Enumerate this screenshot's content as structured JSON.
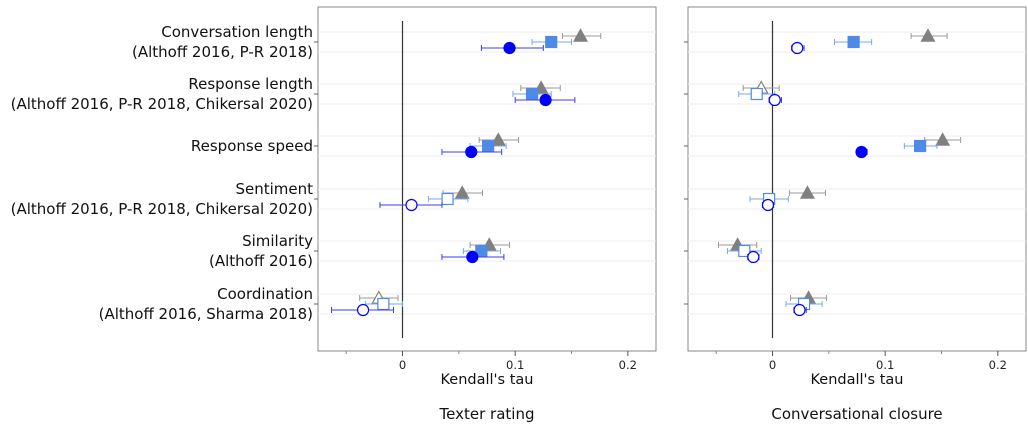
{
  "chart_data": {
    "type": "dot-whisker",
    "categories": [
      {
        "label_lines": [
          "Conversation length",
          "(Althoff 2016, P-R 2018)"
        ]
      },
      {
        "label_lines": [
          "Response length",
          "(Althoff 2016, P-R 2018, Chikersal 2020)"
        ]
      },
      {
        "label_lines": [
          "Response speed"
        ]
      },
      {
        "label_lines": [
          "Sentiment",
          "(Althoff 2016, P-R 2018, Chikersal 2020)"
        ]
      },
      {
        "label_lines": [
          "Similarity",
          "(Althoff 2016)"
        ]
      },
      {
        "label_lines": [
          "Coordination",
          "(Althoff 2016, Sharma 2018)"
        ]
      }
    ],
    "x_axis": {
      "label": "Kendall's tau",
      "ticks": [
        0,
        0.1,
        0.2
      ],
      "tick_labels": [
        "0",
        "0.1",
        "0.2"
      ],
      "range": [
        -0.075,
        0.225
      ]
    },
    "markers": {
      "triangle": {
        "color": "#808080"
      },
      "square": {
        "color": "#4f8ae6"
      },
      "circle": {
        "color": "#0000ff"
      }
    },
    "panels": [
      {
        "title": "Texter rating",
        "points": [
          {
            "cat": 0,
            "marker": "triangle",
            "value": 0.158,
            "lo": 0.142,
            "hi": 0.176,
            "filled": true
          },
          {
            "cat": 0,
            "marker": "square",
            "value": 0.132,
            "lo": 0.115,
            "hi": 0.15,
            "filled": true
          },
          {
            "cat": 0,
            "marker": "circle",
            "value": 0.095,
            "lo": 0.07,
            "hi": 0.125,
            "filled": true
          },
          {
            "cat": 1,
            "marker": "triangle",
            "value": 0.123,
            "lo": 0.105,
            "hi": 0.14,
            "filled": true
          },
          {
            "cat": 1,
            "marker": "square",
            "value": 0.115,
            "lo": 0.098,
            "hi": 0.132,
            "filled": true
          },
          {
            "cat": 1,
            "marker": "circle",
            "value": 0.127,
            "lo": 0.1,
            "hi": 0.153,
            "filled": true
          },
          {
            "cat": 2,
            "marker": "triangle",
            "value": 0.085,
            "lo": 0.068,
            "hi": 0.103,
            "filled": true
          },
          {
            "cat": 2,
            "marker": "square",
            "value": 0.076,
            "lo": 0.06,
            "hi": 0.092,
            "filled": true
          },
          {
            "cat": 2,
            "marker": "circle",
            "value": 0.061,
            "lo": 0.035,
            "hi": 0.088,
            "filled": true
          },
          {
            "cat": 3,
            "marker": "triangle",
            "value": 0.053,
            "lo": 0.036,
            "hi": 0.071,
            "filled": true
          },
          {
            "cat": 3,
            "marker": "square",
            "value": 0.04,
            "lo": 0.023,
            "hi": 0.058,
            "filled": false
          },
          {
            "cat": 3,
            "marker": "circle",
            "value": 0.008,
            "lo": -0.02,
            "hi": 0.035,
            "filled": false
          },
          {
            "cat": 4,
            "marker": "triangle",
            "value": 0.077,
            "lo": 0.06,
            "hi": 0.095,
            "filled": true
          },
          {
            "cat": 4,
            "marker": "square",
            "value": 0.07,
            "lo": 0.054,
            "hi": 0.087,
            "filled": true
          },
          {
            "cat": 4,
            "marker": "circle",
            "value": 0.062,
            "lo": 0.035,
            "hi": 0.09,
            "filled": true
          },
          {
            "cat": 5,
            "marker": "triangle",
            "value": -0.021,
            "lo": -0.038,
            "hi": -0.004,
            "filled": false
          },
          {
            "cat": 5,
            "marker": "square",
            "value": -0.017,
            "lo": -0.033,
            "hi": 0.0,
            "filled": false
          },
          {
            "cat": 5,
            "marker": "circle",
            "value": -0.035,
            "lo": -0.063,
            "hi": -0.008,
            "filled": false
          }
        ]
      },
      {
        "title": "Conversational closure",
        "points": [
          {
            "cat": 0,
            "marker": "triangle",
            "value": 0.138,
            "lo": 0.123,
            "hi": 0.155,
            "filled": true
          },
          {
            "cat": 0,
            "marker": "square",
            "value": 0.072,
            "lo": 0.055,
            "hi": 0.088,
            "filled": true
          },
          {
            "cat": 0,
            "marker": "circle",
            "value": 0.022,
            "lo": 0.017,
            "hi": 0.028,
            "filled": false
          },
          {
            "cat": 1,
            "marker": "triangle",
            "value": -0.01,
            "lo": -0.026,
            "hi": 0.006,
            "filled": false
          },
          {
            "cat": 1,
            "marker": "square",
            "value": -0.014,
            "lo": -0.03,
            "hi": 0.002,
            "filled": false
          },
          {
            "cat": 1,
            "marker": "circle",
            "value": 0.002,
            "lo": -0.003,
            "hi": 0.008,
            "filled": false
          },
          {
            "cat": 2,
            "marker": "triangle",
            "value": 0.151,
            "lo": 0.135,
            "hi": 0.167,
            "filled": true
          },
          {
            "cat": 2,
            "marker": "square",
            "value": 0.131,
            "lo": 0.117,
            "hi": 0.146,
            "filled": true
          },
          {
            "cat": 2,
            "marker": "circle",
            "value": 0.079,
            "lo": 0.075,
            "hi": 0.084,
            "filled": true
          },
          {
            "cat": 3,
            "marker": "triangle",
            "value": 0.031,
            "lo": 0.015,
            "hi": 0.047,
            "filled": true
          },
          {
            "cat": 3,
            "marker": "square",
            "value": -0.003,
            "lo": -0.02,
            "hi": 0.014,
            "filled": false
          },
          {
            "cat": 3,
            "marker": "circle",
            "value": -0.004,
            "lo": -0.009,
            "hi": 0.001,
            "filled": false
          },
          {
            "cat": 4,
            "marker": "triangle",
            "value": -0.031,
            "lo": -0.048,
            "hi": -0.014,
            "filled": true
          },
          {
            "cat": 4,
            "marker": "square",
            "value": -0.025,
            "lo": -0.04,
            "hi": -0.01,
            "filled": false
          },
          {
            "cat": 4,
            "marker": "circle",
            "value": -0.017,
            "lo": -0.022,
            "hi": -0.012,
            "filled": false
          },
          {
            "cat": 5,
            "marker": "triangle",
            "value": 0.032,
            "lo": 0.016,
            "hi": 0.048,
            "filled": true
          },
          {
            "cat": 5,
            "marker": "square",
            "value": 0.028,
            "lo": 0.012,
            "hi": 0.044,
            "filled": false
          },
          {
            "cat": 5,
            "marker": "circle",
            "value": 0.024,
            "lo": 0.019,
            "hi": 0.03,
            "filled": false
          }
        ]
      }
    ]
  }
}
